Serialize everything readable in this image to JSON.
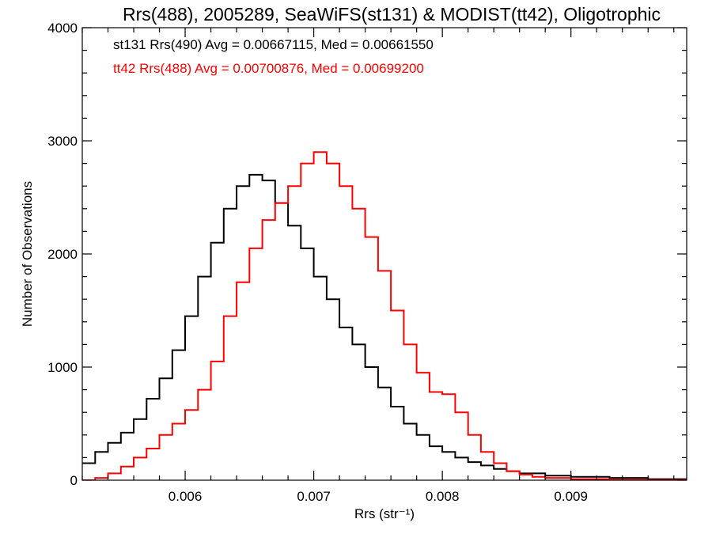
{
  "chart_data": {
    "type": "line",
    "title": "Rrs(488), 2005289, SeaWiFS(st131) & MODIST(tt42), Oligotrophic",
    "xlabel": "Rrs (str⁻¹)",
    "ylabel": "Number of Observations",
    "xlim": [
      0.0052,
      0.0099
    ],
    "ylim": [
      0,
      4000
    ],
    "x_ticks": [
      {
        "value": 0.006,
        "label": "0.006"
      },
      {
        "value": 0.007,
        "label": "0.007"
      },
      {
        "value": 0.008,
        "label": "0.008"
      },
      {
        "value": 0.009,
        "label": "0.009"
      }
    ],
    "y_ticks": [
      {
        "value": 0,
        "label": "0"
      },
      {
        "value": 1000,
        "label": "1000"
      },
      {
        "value": 2000,
        "label": "2000"
      },
      {
        "value": 3000,
        "label": "3000"
      },
      {
        "value": 4000,
        "label": "4000"
      }
    ],
    "annotations": [
      {
        "text": "st131 Rrs(490) Avg = 0.00667115, Med = 0.00661550",
        "color": "#000000"
      },
      {
        "text": "tt42 Rrs(488) Avg = 0.00700876, Med = 0.00699200",
        "color": "#ff0000"
      }
    ],
    "series": [
      {
        "color": "#000000",
        "x": [
          0.0052,
          0.0053,
          0.0054,
          0.0055,
          0.0056,
          0.0057,
          0.0058,
          0.0059,
          0.006,
          0.0061,
          0.0062,
          0.0063,
          0.0064,
          0.0065,
          0.0066,
          0.0067,
          0.0068,
          0.0069,
          0.007,
          0.0071,
          0.0072,
          0.0073,
          0.0074,
          0.0075,
          0.0076,
          0.0077,
          0.0078,
          0.0079,
          0.008,
          0.0081,
          0.0082,
          0.0083,
          0.0084,
          0.0085,
          0.0086,
          0.0088,
          0.009,
          0.0093,
          0.0096,
          0.0099
        ],
        "values": [
          150,
          250,
          330,
          420,
          540,
          720,
          900,
          1150,
          1450,
          1800,
          2100,
          2400,
          2600,
          2700,
          2650,
          2450,
          2250,
          2050,
          1800,
          1600,
          1350,
          1200,
          1000,
          820,
          650,
          500,
          400,
          300,
          250,
          200,
          160,
          130,
          100,
          80,
          60,
          40,
          30,
          20,
          10,
          5
        ]
      },
      {
        "color": "#ff0000",
        "x": [
          0.0052,
          0.0053,
          0.0054,
          0.0055,
          0.0056,
          0.0057,
          0.0058,
          0.0059,
          0.006,
          0.0061,
          0.0062,
          0.0063,
          0.0064,
          0.0065,
          0.0066,
          0.0067,
          0.0068,
          0.0069,
          0.007,
          0.0071,
          0.0072,
          0.0073,
          0.0074,
          0.0075,
          0.0076,
          0.0077,
          0.0078,
          0.0079,
          0.008,
          0.0081,
          0.0082,
          0.0083,
          0.0084,
          0.0085,
          0.0086,
          0.0087,
          0.0088,
          0.009,
          0.0093,
          0.0096,
          0.0099
        ],
        "values": [
          0,
          20,
          60,
          120,
          200,
          280,
          400,
          500,
          620,
          800,
          1050,
          1450,
          1750,
          2050,
          2300,
          2450,
          2600,
          2800,
          2900,
          2800,
          2600,
          2400,
          2150,
          1850,
          1500,
          1200,
          950,
          780,
          760,
          600,
          400,
          250,
          150,
          80,
          50,
          30,
          20,
          10,
          5,
          3,
          0
        ]
      }
    ]
  }
}
